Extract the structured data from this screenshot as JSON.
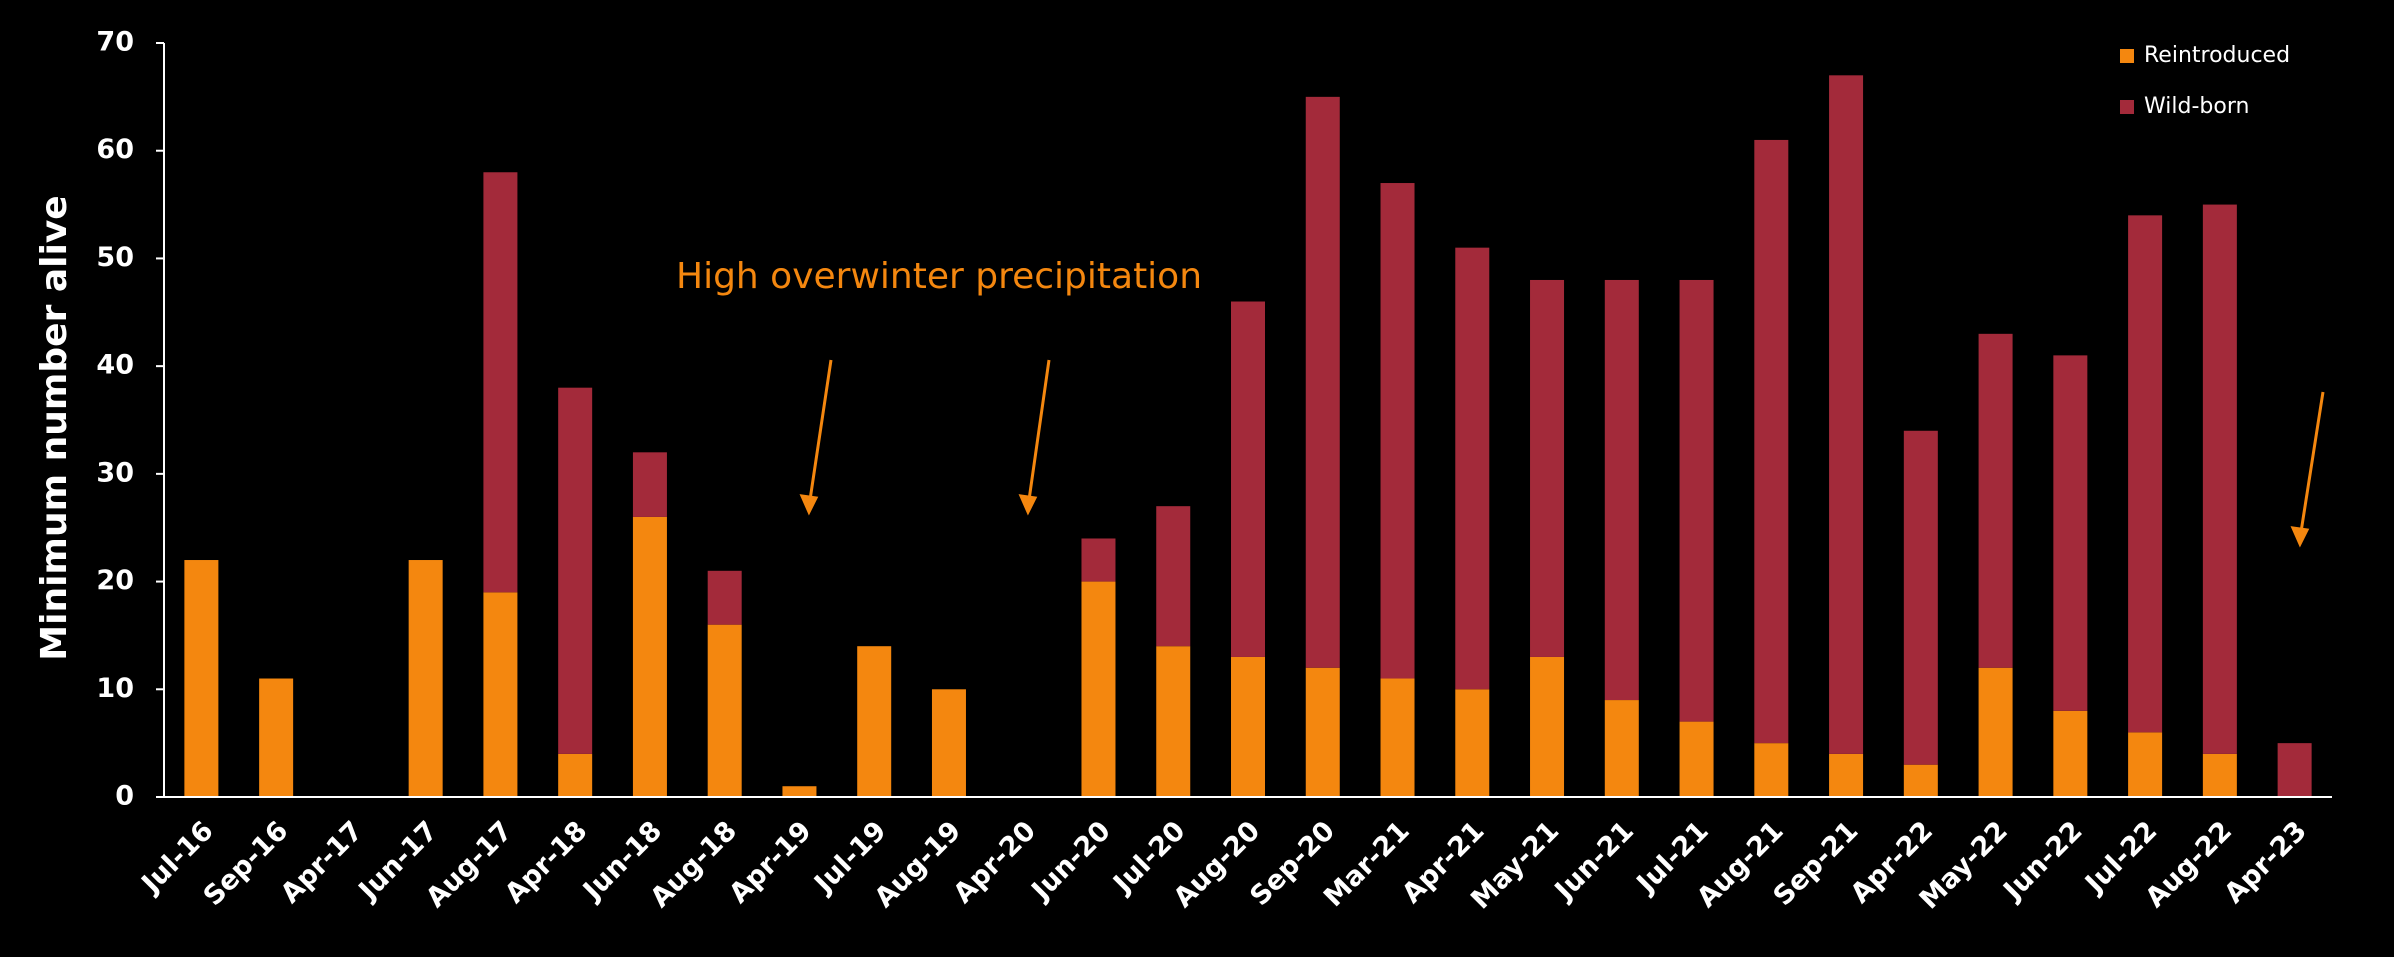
{
  "chart_data": {
    "type": "stacked_bar",
    "y_label": "Minimum number alive",
    "annotation": "High overwinter precipitation",
    "categories": [
      "Jul-16",
      "Sep-16",
      "Apr-17",
      "Jun-17",
      "Aug-17",
      "Apr-18",
      "Jun-18",
      "Aug-18",
      "Apr-19",
      "Jul-19",
      "Aug-19",
      "Apr-20",
      "Jun-20",
      "Jul-20",
      "Aug-20",
      "Sep-20",
      "Mar-21",
      "Apr-21",
      "May-21",
      "Jun-21",
      "Jul-21",
      "Aug-21",
      "Sep-21",
      "Apr-22",
      "May-22",
      "Jun-22",
      "Jul-22",
      "Aug-22",
      "Apr-23"
    ],
    "series": [
      {
        "name": "Reintroduced",
        "color": "#f4870f",
        "values": [
          22,
          11,
          0,
          22,
          19,
          4,
          26,
          16,
          1,
          14,
          10,
          0,
          20,
          14,
          13,
          12,
          11,
          10,
          13,
          9,
          7,
          5,
          4,
          3,
          12,
          8,
          6,
          4,
          0
        ]
      },
      {
        "name": "Wild-born",
        "color": "#a32a3a",
        "values": [
          0,
          0,
          0,
          0,
          39,
          34,
          6,
          5,
          0,
          0,
          0,
          0,
          4,
          13,
          33,
          53,
          46,
          41,
          35,
          39,
          41,
          56,
          63,
          31,
          31,
          33,
          48,
          51,
          5
        ]
      }
    ],
    "ylim": [
      0,
      70
    ],
    "yticks": [
      0,
      10,
      20,
      30,
      40,
      50,
      60,
      70
    ],
    "grid": false,
    "legend": "top-right"
  }
}
